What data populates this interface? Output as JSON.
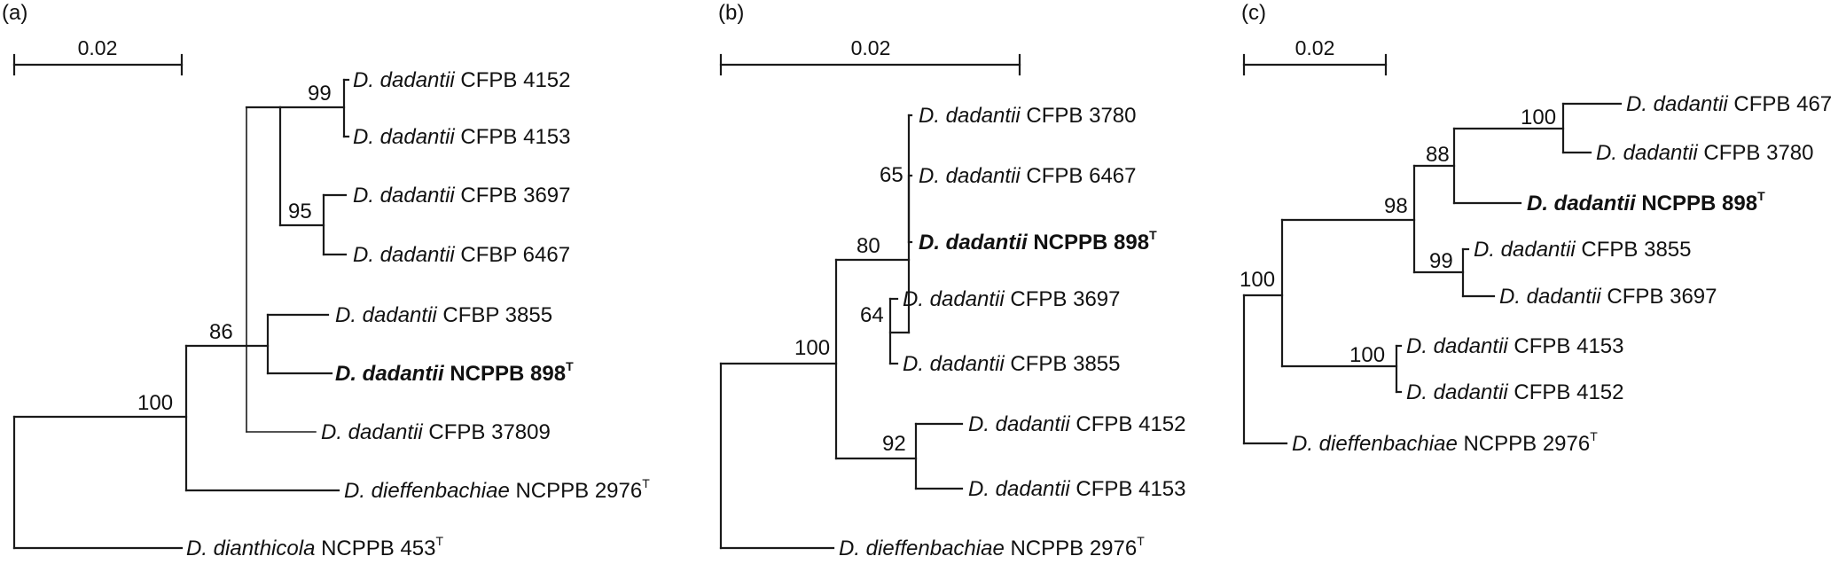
{
  "panels": {
    "a": {
      "label": "(a)",
      "scale": "0.02",
      "bootstrap": {
        "n99": "99",
        "n95": "95",
        "n86": "86",
        "n100": "100"
      },
      "leaves": [
        {
          "genus": "D. dadantii",
          "strain": "CFPB 4152"
        },
        {
          "genus": "D. dadantii",
          "strain": "CFPB 4153"
        },
        {
          "genus": "D. dadantii",
          "strain": "CFPB 3697"
        },
        {
          "genus": "D. dadantii",
          "strain": "CFBP 6467"
        },
        {
          "genus": "D. dadantii",
          "strain": "CFBP 3855"
        },
        {
          "genus": "D. dadantii",
          "strain": "NCPPB 898",
          "sup": "T"
        },
        {
          "genus": "D. dadantii",
          "strain": "CFPB 37809"
        },
        {
          "genus": "D. dieffenbachiae",
          "strain": "NCPPB 2976",
          "sup": "T"
        },
        {
          "genus": "D. dianthicola",
          "strain": "NCPPB 453",
          "sup": "T"
        }
      ]
    },
    "b": {
      "label": "(b)",
      "scale": "0.02",
      "bootstrap": {
        "n65": "65",
        "n80": "80",
        "n64": "64",
        "n100": "100",
        "n92": "92"
      },
      "leaves": [
        {
          "genus": "D. dadantii",
          "strain": "CFPB 3780"
        },
        {
          "genus": "D. dadantii",
          "strain": "CFPB 6467"
        },
        {
          "genus": "D. dadantii",
          "strain": "NCPPB 898",
          "sup": "T"
        },
        {
          "genus": "D. dadantii",
          "strain": "CFPB 3697"
        },
        {
          "genus": "D. dadantii",
          "strain": "CFPB 3855"
        },
        {
          "genus": "D. dadantii",
          "strain": "CFPB 4152"
        },
        {
          "genus": "D. dadantii",
          "strain": "CFPB 4153"
        },
        {
          "genus": "D. dieffenbachiae",
          "strain": "NCPPB 2976",
          "sup": "T"
        }
      ]
    },
    "c": {
      "label": "(c)",
      "scale": "0.02",
      "bootstrap": {
        "n100a": "100",
        "n88": "88",
        "n98": "98",
        "n99": "99",
        "n100b": "100",
        "n100c": "100"
      },
      "leaves": [
        {
          "genus": "D. dadantii",
          "strain": "CFPB 467"
        },
        {
          "genus": "D. dadantii",
          "strain": "CFPB 3780"
        },
        {
          "genus": "D. dadantii",
          "strain": "NCPPB 898",
          "sup": "T"
        },
        {
          "genus": "D. dadantii",
          "strain": "CFPB 3855"
        },
        {
          "genus": "D. dadantii",
          "strain": "CFPB 3697"
        },
        {
          "genus": "D. dadantii",
          "strain": "CFPB 4153"
        },
        {
          "genus": "D. dadantii",
          "strain": "CFPB 4152"
        },
        {
          "genus": "D. dieffenbachiae",
          "strain": "NCPPB 2976",
          "sup": "T"
        }
      ]
    }
  }
}
